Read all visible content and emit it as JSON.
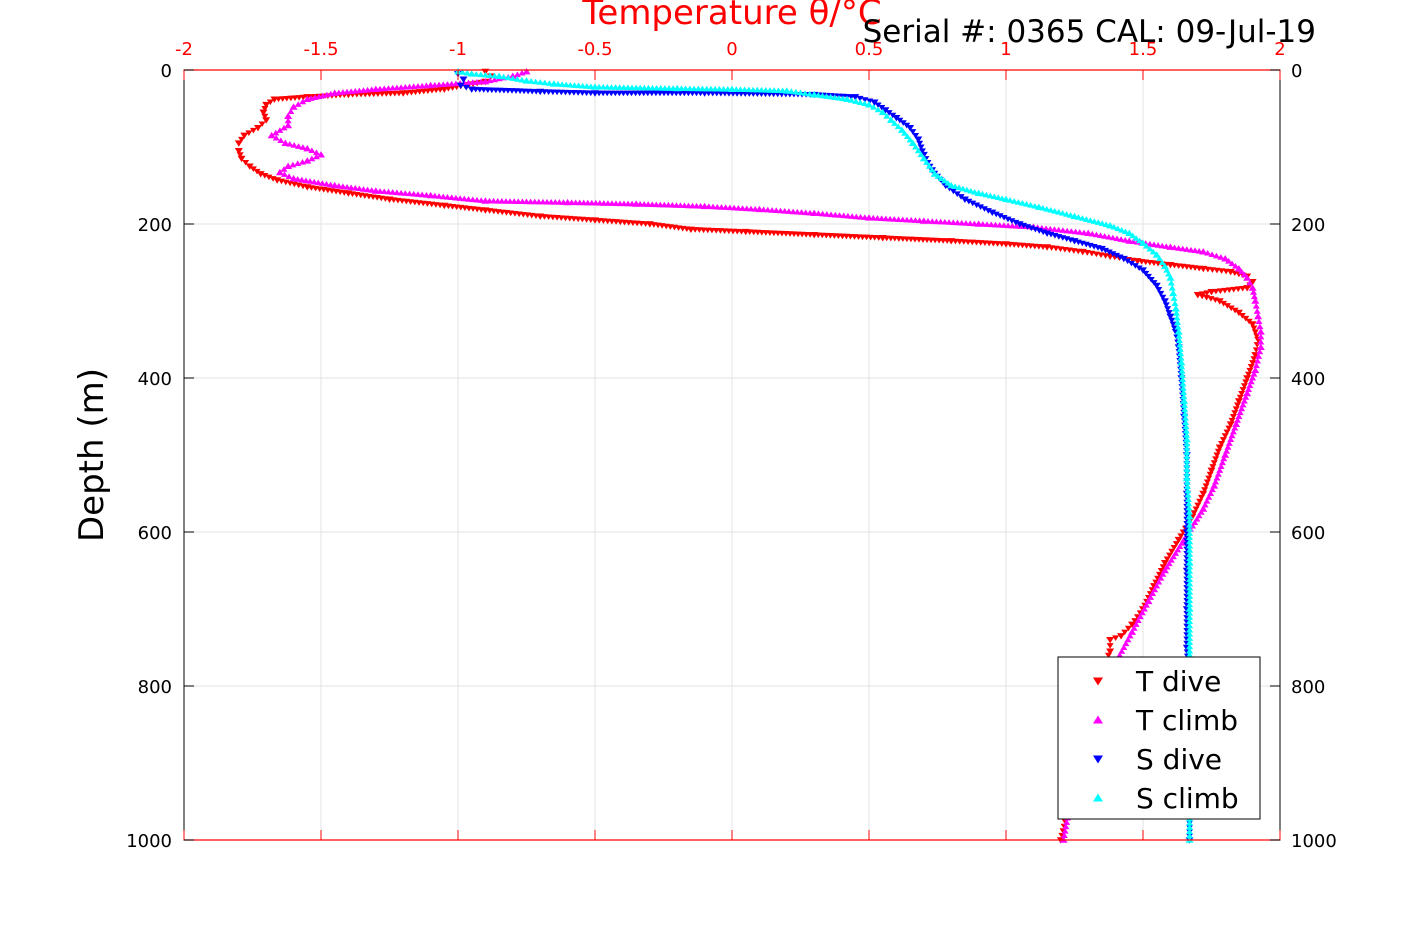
{
  "chart_data": {
    "type": "scatter",
    "title": "Serial #: 0365  CAL: 09-Jul-19",
    "xlabel": "Temperature θ/°C",
    "ylabel": "Depth (m)",
    "xlim": [
      -2,
      2
    ],
    "ylim": [
      0,
      1000
    ],
    "y_reversed": true,
    "x_axis_position": "top",
    "y_axis_mirrored": true,
    "grid": true,
    "x_ticks": [
      "-2",
      "-1.5",
      "-1",
      "-0.5",
      "0",
      "0.5",
      "1",
      "1.5",
      "2"
    ],
    "y_ticks": [
      "0",
      "200",
      "400",
      "600",
      "800",
      "1000"
    ],
    "legend_position": "bottom-right",
    "series": [
      {
        "name": "T dive",
        "marker": "triangle-down",
        "color": "#ff0000",
        "points": [
          [
            -0.9,
            2
          ],
          [
            -0.88,
            8
          ],
          [
            -0.9,
            15
          ],
          [
            -1.05,
            25
          ],
          [
            -1.2,
            30
          ],
          [
            -1.4,
            32
          ],
          [
            -1.55,
            35
          ],
          [
            -1.67,
            38
          ],
          [
            -1.7,
            45
          ],
          [
            -1.71,
            55
          ],
          [
            -1.7,
            65
          ],
          [
            -1.73,
            75
          ],
          [
            -1.78,
            85
          ],
          [
            -1.8,
            95
          ],
          [
            -1.8,
            105
          ],
          [
            -1.79,
            115
          ],
          [
            -1.76,
            125
          ],
          [
            -1.72,
            135
          ],
          [
            -1.66,
            143
          ],
          [
            -1.55,
            152
          ],
          [
            -1.4,
            160
          ],
          [
            -1.25,
            168
          ],
          [
            -1.05,
            176
          ],
          [
            -0.9,
            182
          ],
          [
            -0.7,
            190
          ],
          [
            -0.5,
            195
          ],
          [
            -0.3,
            200
          ],
          [
            -0.15,
            207
          ],
          [
            0.05,
            210
          ],
          [
            0.3,
            214
          ],
          [
            0.55,
            218
          ],
          [
            0.8,
            222
          ],
          [
            1.0,
            226
          ],
          [
            1.15,
            230
          ],
          [
            1.28,
            236
          ],
          [
            1.38,
            242
          ],
          [
            1.48,
            248
          ],
          [
            1.6,
            253
          ],
          [
            1.72,
            258
          ],
          [
            1.82,
            262
          ],
          [
            1.88,
            268
          ],
          [
            1.9,
            275
          ],
          [
            1.88,
            283
          ],
          [
            1.75,
            288
          ],
          [
            1.7,
            292
          ],
          [
            1.78,
            300
          ],
          [
            1.85,
            315
          ],
          [
            1.9,
            330
          ],
          [
            1.92,
            350
          ],
          [
            1.91,
            370
          ],
          [
            1.88,
            400
          ],
          [
            1.85,
            430
          ],
          [
            1.82,
            460
          ],
          [
            1.78,
            490
          ],
          [
            1.75,
            520
          ],
          [
            1.72,
            550
          ],
          [
            1.68,
            580
          ],
          [
            1.63,
            610
          ],
          [
            1.58,
            640
          ],
          [
            1.54,
            670
          ],
          [
            1.5,
            700
          ],
          [
            1.46,
            720
          ],
          [
            1.42,
            735
          ],
          [
            1.38,
            740
          ],
          [
            1.38,
            755
          ],
          [
            1.35,
            780
          ],
          [
            1.32,
            830
          ],
          [
            1.28,
            880
          ],
          [
            1.25,
            930
          ],
          [
            1.22,
            970
          ],
          [
            1.2,
            1000
          ]
        ]
      },
      {
        "name": "T climb",
        "marker": "triangle-up",
        "color": "#ff00ff",
        "points": [
          [
            -0.75,
            2
          ],
          [
            -0.8,
            8
          ],
          [
            -0.9,
            15
          ],
          [
            -1.1,
            20
          ],
          [
            -1.3,
            25
          ],
          [
            -1.45,
            30
          ],
          [
            -1.55,
            38
          ],
          [
            -1.6,
            48
          ],
          [
            -1.62,
            60
          ],
          [
            -1.62,
            72
          ],
          [
            -1.68,
            85
          ],
          [
            -1.63,
            95
          ],
          [
            -1.55,
            102
          ],
          [
            -1.5,
            110
          ],
          [
            -1.55,
            118
          ],
          [
            -1.62,
            125
          ],
          [
            -1.65,
            133
          ],
          [
            -1.6,
            141
          ],
          [
            -1.45,
            150
          ],
          [
            -1.3,
            157
          ],
          [
            -1.1,
            163
          ],
          [
            -0.9,
            170
          ],
          [
            -0.6,
            172
          ],
          [
            -0.35,
            174
          ],
          [
            -0.1,
            177
          ],
          [
            0.1,
            181
          ],
          [
            0.3,
            186
          ],
          [
            0.5,
            192
          ],
          [
            0.7,
            196
          ],
          [
            0.9,
            200
          ],
          [
            1.1,
            204
          ],
          [
            1.3,
            212
          ],
          [
            1.45,
            222
          ],
          [
            1.6,
            230
          ],
          [
            1.72,
            236
          ],
          [
            1.8,
            245
          ],
          [
            1.85,
            258
          ],
          [
            1.88,
            270
          ],
          [
            1.9,
            283
          ],
          [
            1.91,
            300
          ],
          [
            1.92,
            320
          ],
          [
            1.93,
            340
          ],
          [
            1.93,
            360
          ],
          [
            1.91,
            390
          ],
          [
            1.88,
            420
          ],
          [
            1.84,
            460
          ],
          [
            1.8,
            500
          ],
          [
            1.76,
            540
          ],
          [
            1.72,
            570
          ],
          [
            1.65,
            610
          ],
          [
            1.58,
            650
          ],
          [
            1.52,
            690
          ],
          [
            1.46,
            730
          ],
          [
            1.4,
            770
          ],
          [
            1.35,
            820
          ],
          [
            1.3,
            870
          ],
          [
            1.26,
            920
          ],
          [
            1.23,
            960
          ],
          [
            1.21,
            1000
          ]
        ]
      },
      {
        "name": "S dive",
        "marker": "triangle-down",
        "color": "#0000ff",
        "points": [
          [
            -1.0,
            5
          ],
          [
            -0.98,
            12
          ],
          [
            -0.99,
            20
          ],
          [
            -0.95,
            25
          ],
          [
            -0.7,
            28
          ],
          [
            -0.5,
            30
          ],
          [
            -0.1,
            30
          ],
          [
            0.3,
            32
          ],
          [
            0.45,
            35
          ],
          [
            0.52,
            42
          ],
          [
            0.56,
            52
          ],
          [
            0.6,
            62
          ],
          [
            0.65,
            75
          ],
          [
            0.68,
            90
          ],
          [
            0.7,
            110
          ],
          [
            0.73,
            130
          ],
          [
            0.78,
            150
          ],
          [
            0.85,
            168
          ],
          [
            0.95,
            185
          ],
          [
            1.05,
            200
          ],
          [
            1.15,
            212
          ],
          [
            1.25,
            222
          ],
          [
            1.35,
            232
          ],
          [
            1.43,
            245
          ],
          [
            1.5,
            260
          ],
          [
            1.55,
            280
          ],
          [
            1.58,
            300
          ],
          [
            1.6,
            320
          ],
          [
            1.62,
            340
          ],
          [
            1.63,
            360
          ],
          [
            1.64,
            400
          ],
          [
            1.65,
            450
          ],
          [
            1.66,
            500
          ],
          [
            1.66,
            550
          ],
          [
            1.66,
            600
          ],
          [
            1.66,
            650
          ],
          [
            1.66,
            700
          ],
          [
            1.66,
            750
          ],
          [
            1.67,
            800
          ],
          [
            1.67,
            850
          ],
          [
            1.67,
            900
          ],
          [
            1.67,
            950
          ],
          [
            1.67,
            1000
          ]
        ]
      },
      {
        "name": "S climb",
        "marker": "triangle-up",
        "color": "#00ffff",
        "points": [
          [
            -1.0,
            2
          ],
          [
            -0.95,
            5
          ],
          [
            -0.85,
            8
          ],
          [
            -0.75,
            14
          ],
          [
            -0.65,
            18
          ],
          [
            -0.5,
            22
          ],
          [
            -0.2,
            24
          ],
          [
            0.0,
            25
          ],
          [
            0.2,
            27
          ],
          [
            0.3,
            32
          ],
          [
            0.42,
            38
          ],
          [
            0.5,
            45
          ],
          [
            0.55,
            55
          ],
          [
            0.58,
            65
          ],
          [
            0.62,
            78
          ],
          [
            0.66,
            95
          ],
          [
            0.7,
            115
          ],
          [
            0.74,
            135
          ],
          [
            0.8,
            150
          ],
          [
            0.9,
            160
          ],
          [
            1.0,
            168
          ],
          [
            1.12,
            178
          ],
          [
            1.25,
            190
          ],
          [
            1.38,
            202
          ],
          [
            1.45,
            212
          ],
          [
            1.5,
            225
          ],
          [
            1.55,
            240
          ],
          [
            1.58,
            255
          ],
          [
            1.6,
            270
          ],
          [
            1.61,
            290
          ],
          [
            1.62,
            310
          ],
          [
            1.63,
            340
          ],
          [
            1.64,
            380
          ],
          [
            1.65,
            430
          ],
          [
            1.66,
            480
          ],
          [
            1.66,
            530
          ],
          [
            1.67,
            580
          ],
          [
            1.67,
            640
          ],
          [
            1.67,
            700
          ],
          [
            1.67,
            760
          ],
          [
            1.67,
            820
          ],
          [
            1.67,
            880
          ],
          [
            1.67,
            940
          ],
          [
            1.67,
            1000
          ]
        ]
      }
    ]
  }
}
